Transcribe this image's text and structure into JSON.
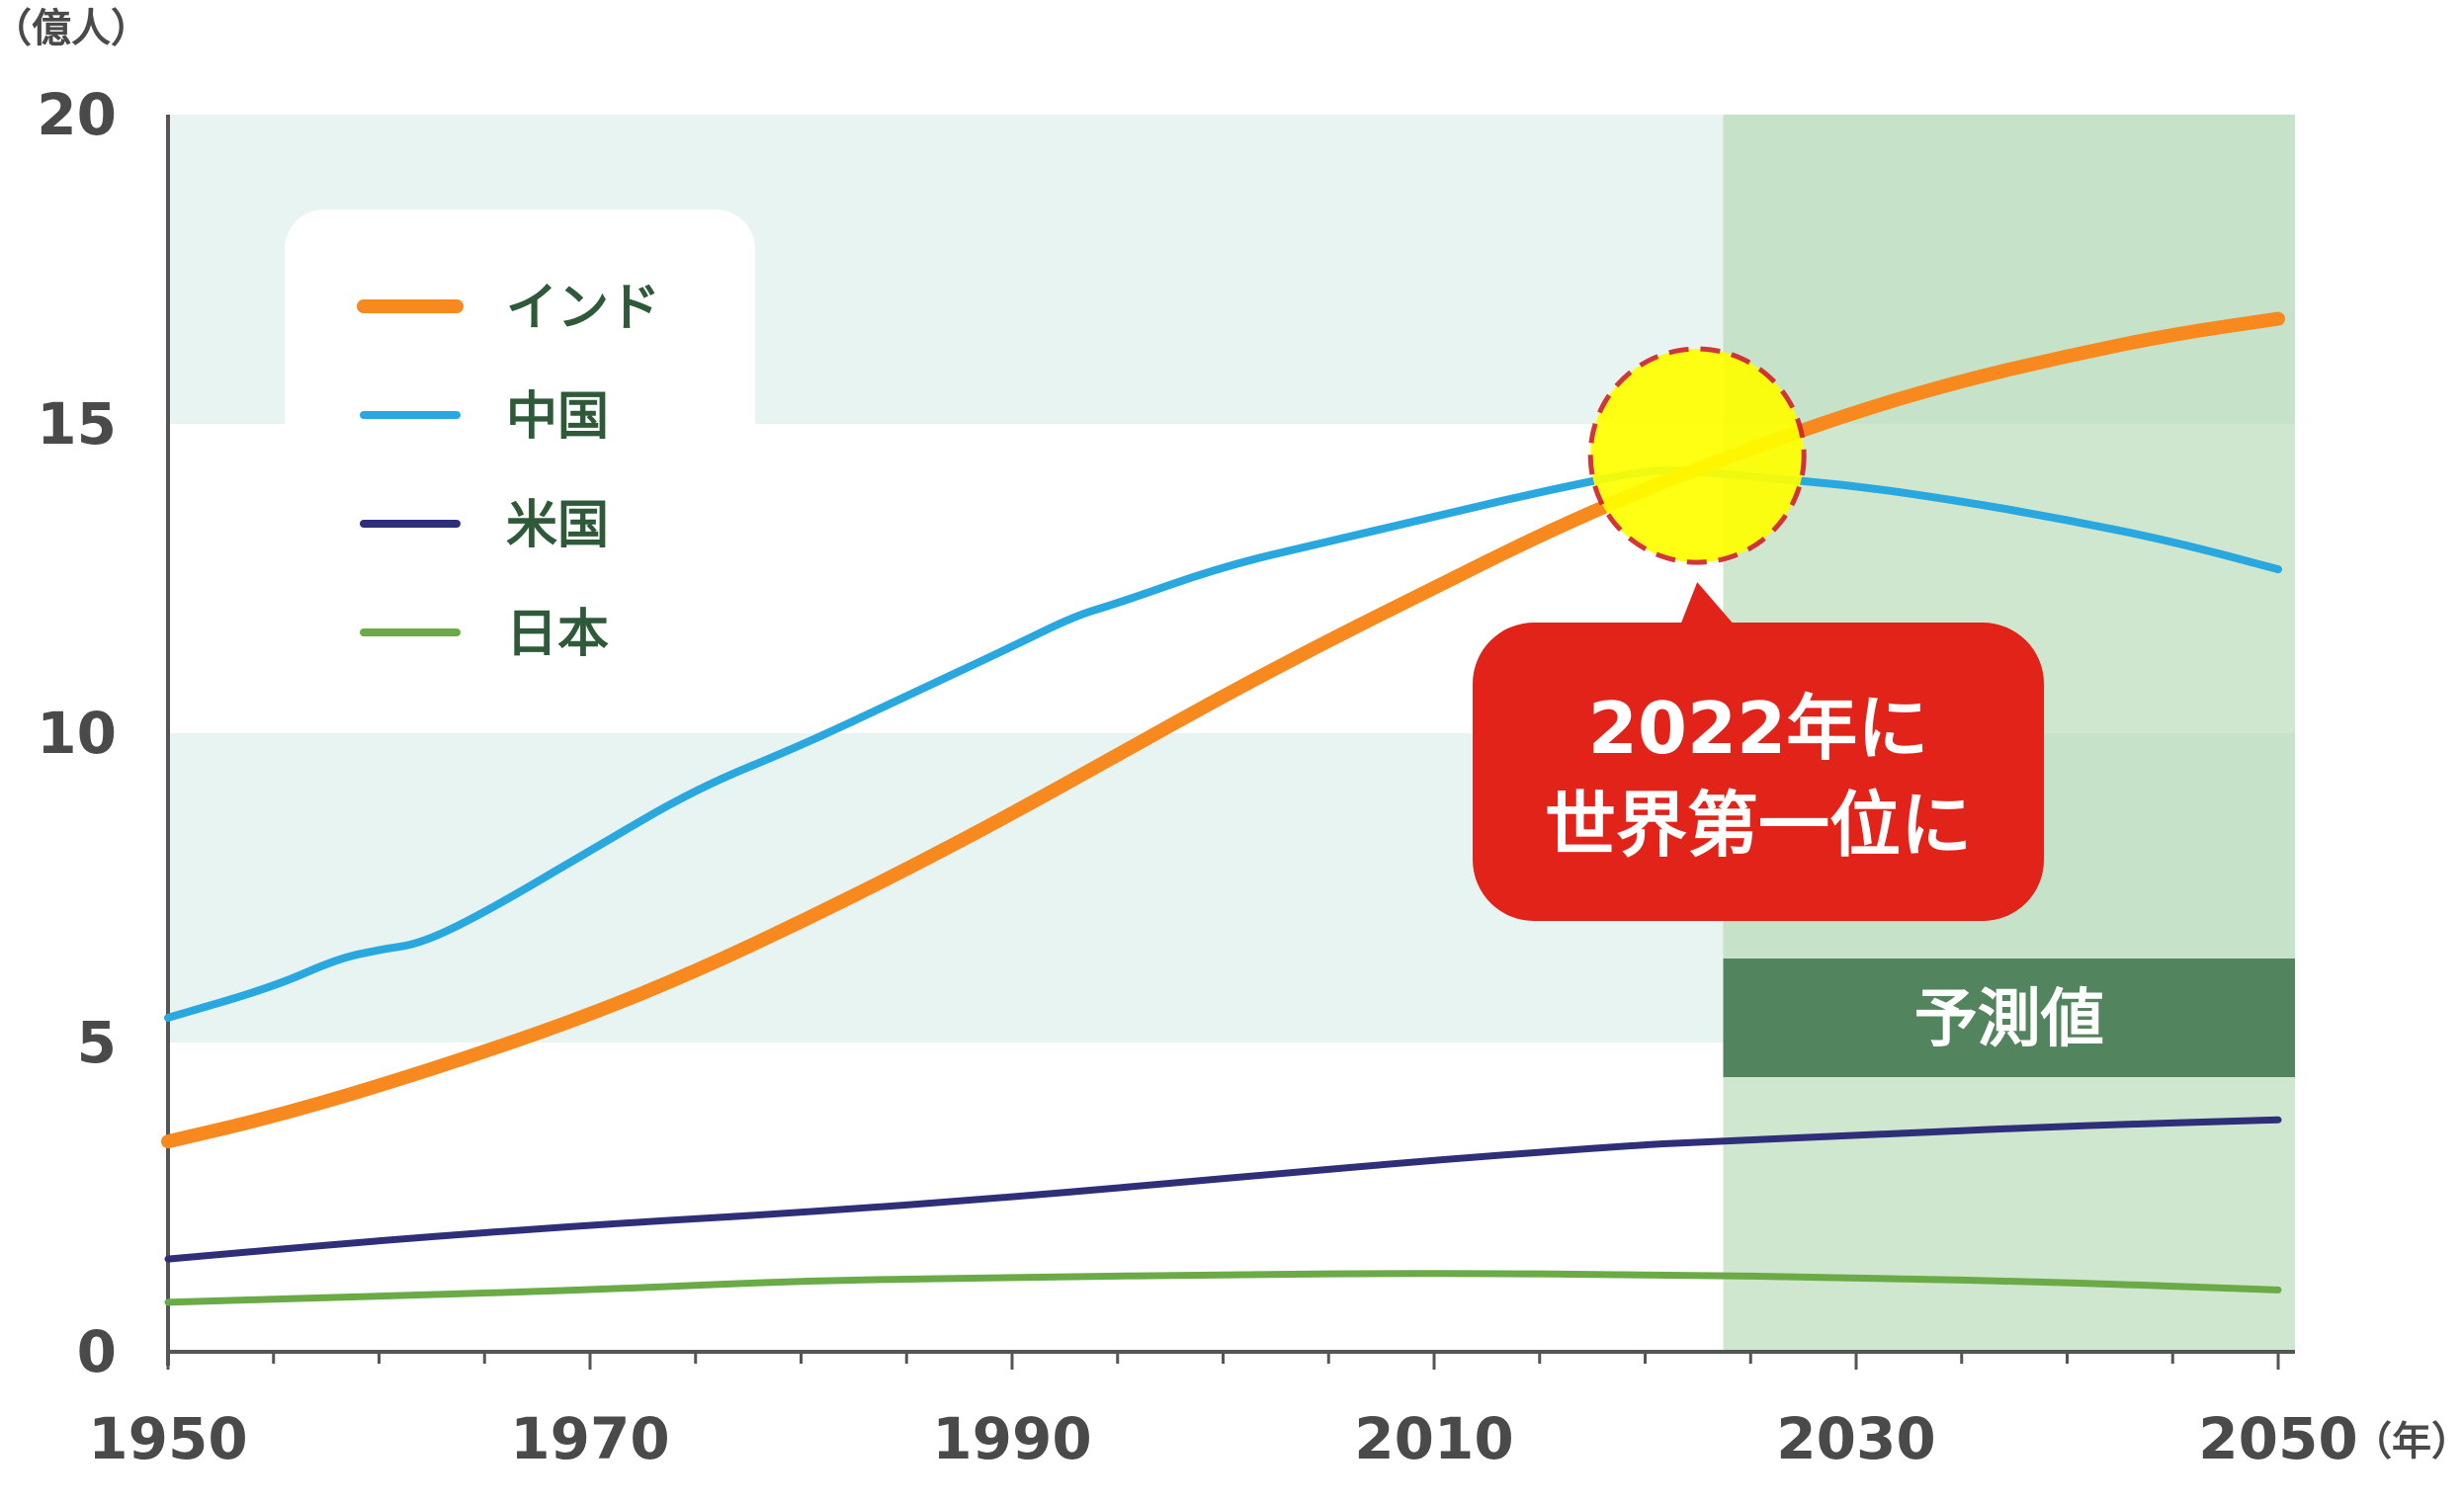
{
  "chart_data": {
    "type": "line",
    "y_unit_label": "（億人）",
    "x_unit_label": "（年）",
    "xlim": [
      1950,
      2051
    ],
    "ylim": [
      0,
      20
    ],
    "x_ticks": [
      1950,
      1970,
      1990,
      2010,
      2030,
      2050
    ],
    "y_ticks": [
      0,
      5,
      10,
      15,
      20
    ],
    "forecast_start": 2023.7,
    "forecast_label": "予測値",
    "callout": {
      "line1": "2022年に",
      "line2": "世界第一位に",
      "x": 2022,
      "y": 14.2
    },
    "legend_position": "top-left",
    "series": [
      {
        "name": "インド",
        "color": "#f7891e",
        "points": [
          [
            1950,
            3.4
          ],
          [
            1955,
            3.8
          ],
          [
            1960,
            4.3
          ],
          [
            1965,
            4.85
          ],
          [
            1970,
            5.45
          ],
          [
            1975,
            6.15
          ],
          [
            1980,
            6.95
          ],
          [
            1985,
            7.8
          ],
          [
            1990,
            8.7
          ],
          [
            1995,
            9.65
          ],
          [
            2000,
            10.6
          ],
          [
            2005,
            11.5
          ],
          [
            2010,
            12.35
          ],
          [
            2015,
            13.2
          ],
          [
            2020,
            13.95
          ],
          [
            2022,
            14.2
          ],
          [
            2025,
            14.6
          ],
          [
            2030,
            15.2
          ],
          [
            2035,
            15.7
          ],
          [
            2040,
            16.1
          ],
          [
            2045,
            16.45
          ],
          [
            2050,
            16.7
          ]
        ]
      },
      {
        "name": "中国",
        "color": "#29a8e0",
        "points": [
          [
            1950,
            5.4
          ],
          [
            1955,
            5.9
          ],
          [
            1958,
            6.35
          ],
          [
            1960,
            6.5
          ],
          [
            1962,
            6.6
          ],
          [
            1965,
            7.1
          ],
          [
            1970,
            8.1
          ],
          [
            1975,
            9.1
          ],
          [
            1980,
            9.8
          ],
          [
            1985,
            10.6
          ],
          [
            1990,
            11.4
          ],
          [
            1993,
            11.9
          ],
          [
            1995,
            12.1
          ],
          [
            2000,
            12.7
          ],
          [
            2005,
            13.1
          ],
          [
            2010,
            13.5
          ],
          [
            2015,
            13.9
          ],
          [
            2020,
            14.25
          ],
          [
            2022,
            14.25
          ],
          [
            2025,
            14.15
          ],
          [
            2030,
            14.0
          ],
          [
            2035,
            13.75
          ],
          [
            2040,
            13.45
          ],
          [
            2045,
            13.1
          ],
          [
            2050,
            12.65
          ]
        ]
      },
      {
        "name": "米国",
        "color": "#2e2f78",
        "points": [
          [
            1950,
            1.5
          ],
          [
            1960,
            1.8
          ],
          [
            1970,
            2.05
          ],
          [
            1980,
            2.25
          ],
          [
            1990,
            2.5
          ],
          [
            2000,
            2.8
          ],
          [
            2010,
            3.1
          ],
          [
            2020,
            3.35
          ],
          [
            2022,
            3.38
          ],
          [
            2030,
            3.5
          ],
          [
            2040,
            3.65
          ],
          [
            2050,
            3.75
          ]
        ]
      },
      {
        "name": "日本",
        "color": "#6aab48",
        "points": [
          [
            1950,
            0.8
          ],
          [
            1960,
            0.9
          ],
          [
            1970,
            1.0
          ],
          [
            1980,
            1.15
          ],
          [
            1990,
            1.2
          ],
          [
            2000,
            1.25
          ],
          [
            2010,
            1.27
          ],
          [
            2020,
            1.25
          ],
          [
            2030,
            1.2
          ],
          [
            2040,
            1.12
          ],
          [
            2050,
            1.0
          ]
        ]
      }
    ]
  }
}
